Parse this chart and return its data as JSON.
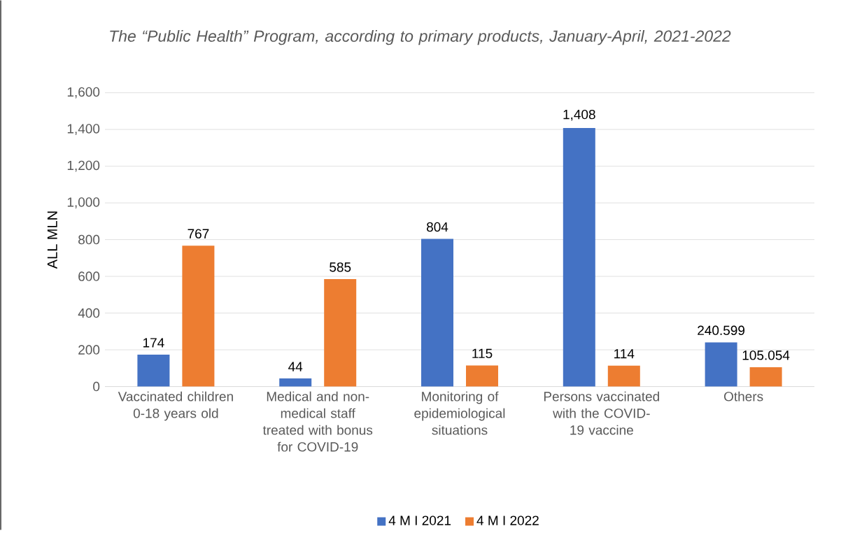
{
  "chart_data": {
    "type": "bar",
    "title": "The “Public Health” Program, according to primary products, January-April, 2021-2022",
    "ylabel": "ALL MLN",
    "categories": [
      "Vaccinated children 0-18 years old",
      "Medical and non-medical staff treated with bonus for COVID-19",
      "Monitoring of epidemiological situations",
      "Persons vaccinated with the COVID-19 vaccine",
      "Others"
    ],
    "series": [
      {
        "name": "4 M I 2021",
        "color": "#4472c4",
        "values": [
          174,
          44,
          804,
          1408,
          240.599
        ],
        "value_labels": [
          "174",
          "44",
          "804",
          "1,408",
          "240.599"
        ]
      },
      {
        "name": "4 M I 2022",
        "color": "#ed7d31",
        "values": [
          767,
          585,
          115,
          114,
          105.054
        ],
        "value_labels": [
          "767",
          "585",
          "115",
          "114",
          "105.054"
        ]
      }
    ],
    "ylim": [
      0,
      1600
    ],
    "yticks": [
      0,
      200,
      400,
      600,
      800,
      {
        "value": 1000,
        "label": "1,000"
      },
      {
        "value": 1200,
        "label": "1,200"
      },
      {
        "value": 1400,
        "label": "1,400"
      },
      {
        "value": 1600,
        "label": "1,600"
      }
    ],
    "grid": "y",
    "legend": "bottom"
  }
}
